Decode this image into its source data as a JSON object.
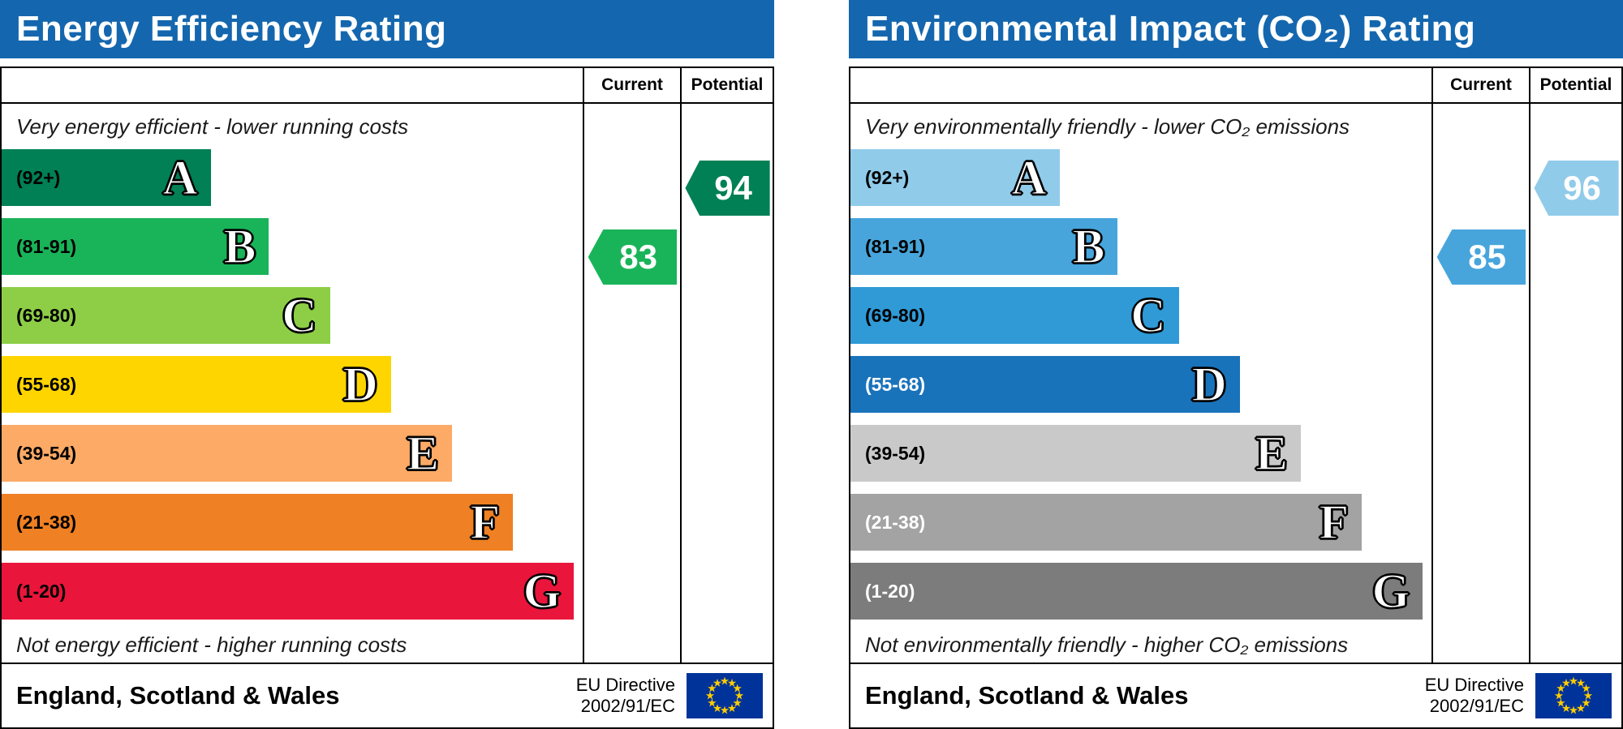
{
  "chart_data": [
    {
      "type": "bar",
      "chart_id": "energy-efficiency-rating",
      "title": "Energy Efficiency Rating",
      "title_bar_color": "#1467ae",
      "column_headers": {
        "current": "Current",
        "potential": "Potential"
      },
      "top_note": "Very energy efficient - lower running costs",
      "bottom_note": "Not energy efficient - higher running costs",
      "scale": {
        "min": 1,
        "max": 100
      },
      "bands": [
        {
          "letter": "A",
          "range_label": "(92+)",
          "range_min": 92,
          "range_max": 100,
          "color": "#008054",
          "width_pct": 36,
          "label_color": "#000000"
        },
        {
          "letter": "B",
          "range_label": "(81-91)",
          "range_min": 81,
          "range_max": 91,
          "color": "#19b459",
          "width_pct": 46,
          "label_color": "#000000"
        },
        {
          "letter": "C",
          "range_label": "(69-80)",
          "range_min": 69,
          "range_max": 80,
          "color": "#8dce46",
          "width_pct": 56.5,
          "label_color": "#000000"
        },
        {
          "letter": "D",
          "range_label": "(55-68)",
          "range_min": 55,
          "range_max": 68,
          "color": "#ffd500",
          "width_pct": 67,
          "label_color": "#000000"
        },
        {
          "letter": "E",
          "range_label": "(39-54)",
          "range_min": 39,
          "range_max": 54,
          "color": "#fcaa65",
          "width_pct": 77.5,
          "label_color": "#000000"
        },
        {
          "letter": "F",
          "range_label": "(21-38)",
          "range_min": 21,
          "range_max": 38,
          "color": "#ef8023",
          "width_pct": 88,
          "label_color": "#000000"
        },
        {
          "letter": "G",
          "range_label": "(1-20)",
          "range_min": 1,
          "range_max": 20,
          "color": "#e9153b",
          "width_pct": 98.5,
          "label_color": "#000000"
        }
      ],
      "current": {
        "label": "Current",
        "value": 83,
        "band": "B",
        "color": "#19b459",
        "text_color": "#ffffff"
      },
      "potential": {
        "label": "Potential",
        "value": 94,
        "band": "A",
        "color": "#008054",
        "text_color": "#ffffff"
      },
      "footer": {
        "region": "England, Scotland & Wales",
        "directive": [
          "EU Directive",
          "2002/91/EC"
        ],
        "flag_icon": "eu-flag",
        "flag_colors": {
          "field": "#003399",
          "stars": "#ffcc00"
        }
      }
    },
    {
      "type": "bar",
      "chart_id": "environmental-impact-co2-rating",
      "title": "Environmental Impact (CO₂) Rating",
      "title_bar_color": "#1467ae",
      "column_headers": {
        "current": "Current",
        "potential": "Potential"
      },
      "top_note": "Very environmentally friendly - lower CO₂ emissions",
      "bottom_note": "Not environmentally friendly - higher CO₂ emissions",
      "scale": {
        "min": 1,
        "max": 100
      },
      "bands": [
        {
          "letter": "A",
          "range_label": "(92+)",
          "range_min": 92,
          "range_max": 100,
          "color": "#90cbea",
          "width_pct": 36,
          "label_color": "#000000"
        },
        {
          "letter": "B",
          "range_label": "(81-91)",
          "range_min": 81,
          "range_max": 91,
          "color": "#47a5dc",
          "width_pct": 46,
          "label_color": "#000000"
        },
        {
          "letter": "C",
          "range_label": "(69-80)",
          "range_min": 69,
          "range_max": 80,
          "color": "#2f9ad6",
          "width_pct": 56.5,
          "label_color": "#000000"
        },
        {
          "letter": "D",
          "range_label": "(55-68)",
          "range_min": 55,
          "range_max": 68,
          "color": "#1973bb",
          "width_pct": 67,
          "label_color": "#ffffff"
        },
        {
          "letter": "E",
          "range_label": "(39-54)",
          "range_min": 39,
          "range_max": 54,
          "color": "#c9c9c9",
          "width_pct": 77.5,
          "label_color": "#000000"
        },
        {
          "letter": "F",
          "range_label": "(21-38)",
          "range_min": 21,
          "range_max": 38,
          "color": "#a3a3a3",
          "width_pct": 88,
          "label_color": "#ffffff"
        },
        {
          "letter": "G",
          "range_label": "(1-20)",
          "range_min": 1,
          "range_max": 20,
          "color": "#7c7c7c",
          "width_pct": 98.5,
          "label_color": "#ffffff"
        }
      ],
      "current": {
        "label": "Current",
        "value": 85,
        "band": "B",
        "color": "#47a5dc",
        "text_color": "#ffffff"
      },
      "potential": {
        "label": "Potential",
        "value": 96,
        "band": "A",
        "color": "#90cbea",
        "text_color": "#ffffff"
      },
      "footer": {
        "region": "England, Scotland & Wales",
        "directive": [
          "EU Directive",
          "2002/91/EC"
        ],
        "flag_icon": "eu-flag",
        "flag_colors": {
          "field": "#003399",
          "stars": "#ffcc00"
        }
      }
    }
  ]
}
